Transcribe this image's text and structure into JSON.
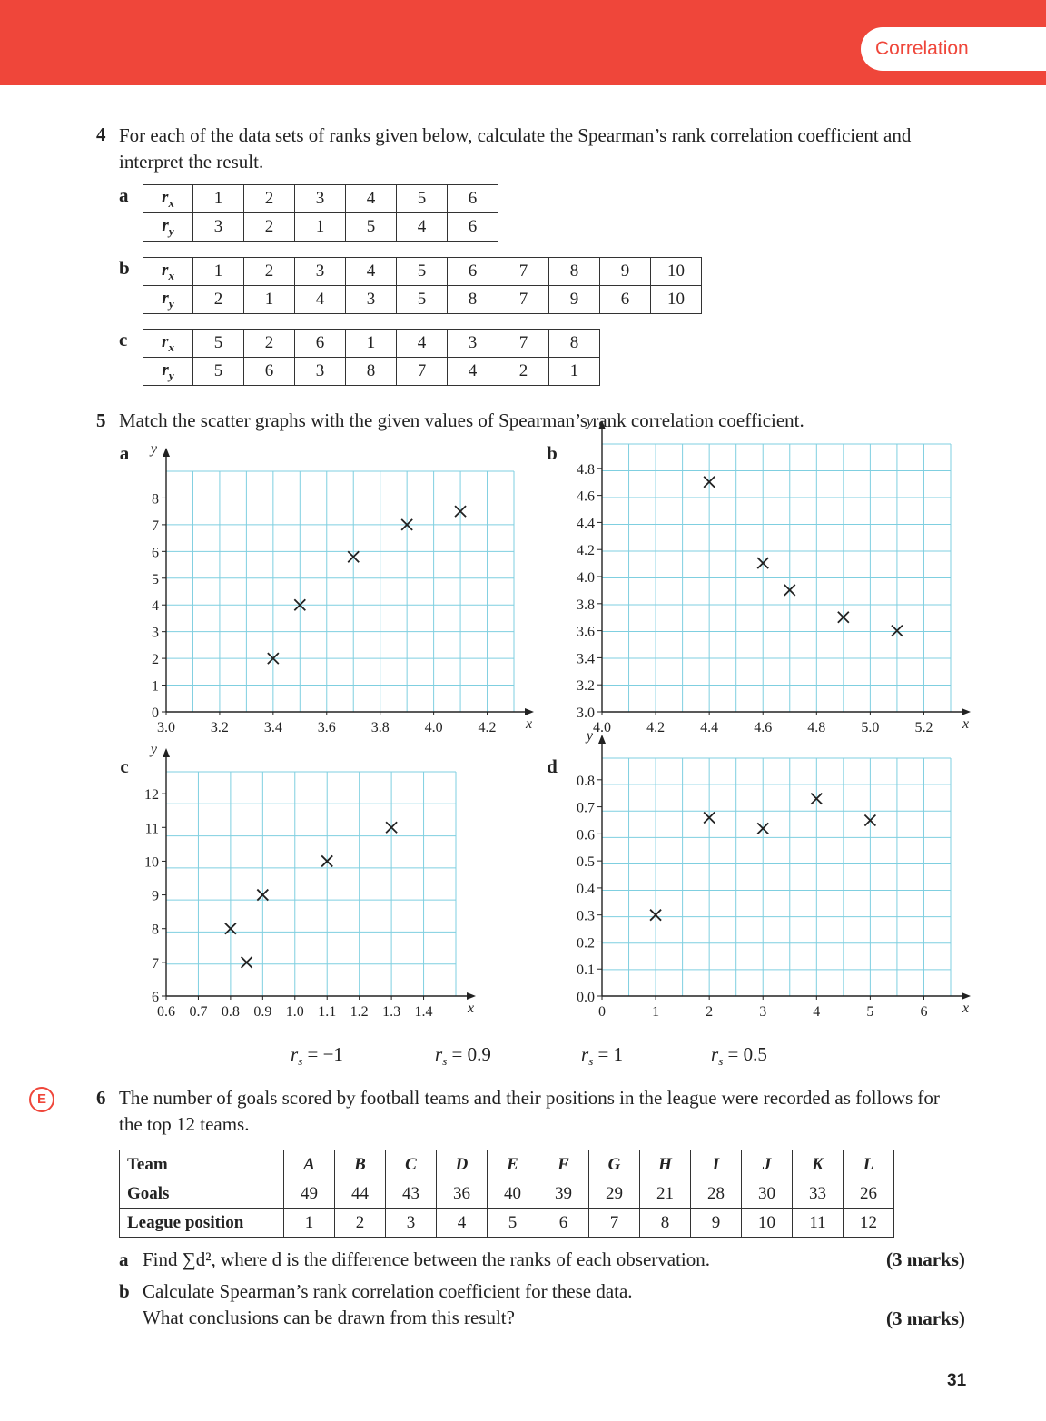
{
  "header": {
    "section_tab": "Correlation"
  },
  "q4": {
    "number": "4",
    "text": "For each of the data sets of ranks given below, calculate the Spearman’s rank correlation coefficient and interpret the result.",
    "parts": [
      {
        "label": "a",
        "rx": [
          "1",
          "2",
          "3",
          "4",
          "5",
          "6"
        ],
        "ry": [
          "3",
          "2",
          "1",
          "5",
          "4",
          "6"
        ]
      },
      {
        "label": "b",
        "rx": [
          "1",
          "2",
          "3",
          "4",
          "5",
          "6",
          "7",
          "8",
          "9",
          "10"
        ],
        "ry": [
          "2",
          "1",
          "4",
          "3",
          "5",
          "8",
          "7",
          "9",
          "6",
          "10"
        ]
      },
      {
        "label": "c",
        "rx": [
          "5",
          "2",
          "6",
          "1",
          "4",
          "3",
          "7",
          "8"
        ],
        "ry": [
          "5",
          "6",
          "3",
          "8",
          "7",
          "4",
          "2",
          "1"
        ]
      }
    ]
  },
  "q5": {
    "number": "5",
    "text": "Match the scatter graphs with the given values of Spearman’s rank correlation coefficient.",
    "rs_values": [
      "r_s = −1",
      "r_s = 0.9",
      "r_s = 1",
      "r_s = 0.5"
    ]
  },
  "chart_data": [
    {
      "label": "a",
      "type": "scatter",
      "xlabel": "x",
      "ylabel": "y",
      "xlim": [
        3.0,
        4.3
      ],
      "ylim": [
        0,
        9
      ],
      "xticks": [
        "3.0",
        "3.2",
        "3.4",
        "3.6",
        "3.8",
        "4.0",
        "4.2"
      ],
      "yticks": [
        "0",
        "1",
        "2",
        "3",
        "4",
        "5",
        "6",
        "7",
        "8"
      ],
      "points": [
        [
          3.4,
          2
        ],
        [
          3.5,
          4
        ],
        [
          3.7,
          5.8
        ],
        [
          3.9,
          7
        ],
        [
          4.1,
          7.5
        ]
      ],
      "grid": true
    },
    {
      "label": "b",
      "type": "scatter",
      "xlabel": "x",
      "ylabel": "y",
      "xlim": [
        4.0,
        5.3
      ],
      "ylim": [
        3.0,
        4.98
      ],
      "xticks": [
        "4.0",
        "4.2",
        "4.4",
        "4.6",
        "4.8",
        "5.0",
        "5.2"
      ],
      "yticks": [
        "3.0",
        "3.2",
        "3.4",
        "3.6",
        "3.8",
        "4.0",
        "4.2",
        "4.4",
        "4.6",
        "4.8"
      ],
      "points": [
        [
          4.4,
          4.7
        ],
        [
          4.6,
          4.1
        ],
        [
          4.7,
          3.9
        ],
        [
          4.9,
          3.7
        ],
        [
          5.1,
          3.6
        ]
      ],
      "grid": true
    },
    {
      "label": "c",
      "type": "scatter",
      "xlabel": "x",
      "ylabel": "y",
      "xlim": [
        0.6,
        1.5
      ],
      "ylim": [
        6,
        12.65
      ],
      "xticks": [
        "0.6",
        "0.7",
        "0.8",
        "0.9",
        "1.0",
        "1.1",
        "1.2",
        "1.3",
        "1.4"
      ],
      "yticks": [
        "6",
        "7",
        "8",
        "9",
        "10",
        "11",
        "12"
      ],
      "points": [
        [
          0.8,
          8
        ],
        [
          0.85,
          7
        ],
        [
          0.9,
          9
        ],
        [
          1.1,
          10
        ],
        [
          1.3,
          11
        ]
      ],
      "grid": true
    },
    {
      "label": "d",
      "type": "scatter",
      "xlabel": "x",
      "ylabel": "y",
      "xlim": [
        0,
        6.5
      ],
      "ylim": [
        0,
        0.88
      ],
      "xticks": [
        "0",
        "1",
        "2",
        "3",
        "4",
        "5",
        "6"
      ],
      "yticks": [
        "0.0",
        "0.1",
        "0.2",
        "0.3",
        "0.4",
        "0.5",
        "0.6",
        "0.7",
        "0.8"
      ],
      "points": [
        [
          1,
          0.3
        ],
        [
          2,
          0.66
        ],
        [
          3,
          0.62
        ],
        [
          4,
          0.73
        ],
        [
          5,
          0.65
        ]
      ],
      "grid": true
    }
  ],
  "q6": {
    "badge": "E",
    "number": "6",
    "text": "The number of goals scored by football teams and their positions in the league were recorded as follows for the top 12 teams.",
    "row_headers": [
      "Team",
      "Goals",
      "League position"
    ],
    "teams": [
      "A",
      "B",
      "C",
      "D",
      "E",
      "F",
      "G",
      "H",
      "I",
      "J",
      "K",
      "L"
    ],
    "goals": [
      "49",
      "44",
      "43",
      "36",
      "40",
      "39",
      "29",
      "21",
      "28",
      "30",
      "33",
      "26"
    ],
    "positions": [
      "1",
      "2",
      "3",
      "4",
      "5",
      "6",
      "7",
      "8",
      "9",
      "10",
      "11",
      "12"
    ],
    "part_a": {
      "label": "a",
      "text": "Find ∑d², where d is the difference between the ranks of each observation.",
      "marks": "(3 marks)"
    },
    "part_b": {
      "label": "b",
      "line1": "Calculate Spearman’s rank correlation coefficient for these data.",
      "line2": "What conclusions can be drawn from this result?",
      "marks": "(3 marks)"
    }
  },
  "footer": {
    "page_number": "31"
  }
}
